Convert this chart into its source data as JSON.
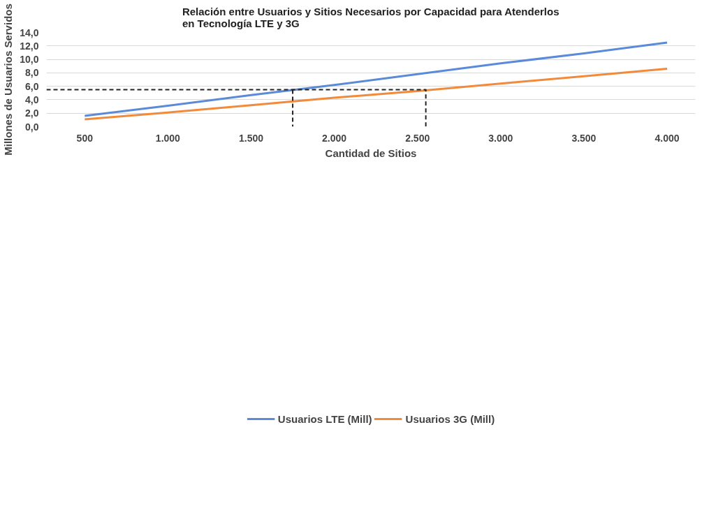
{
  "chart_data": {
    "type": "line",
    "title": "Relación entre Usuarios y Sitios Necesarios por Capacidad para Atenderlos\nen Tecnología LTE y 3G",
    "xlabel": "Cantidad de Sitios",
    "ylabel": "Millones de Usuarios Servidos",
    "x": [
      500,
      1000,
      1500,
      2000,
      2500,
      3000,
      3500,
      4000
    ],
    "xlim": [
      270,
      4170
    ],
    "xticks": [
      500,
      {
        "value": 1000,
        "label": "1.000"
      },
      {
        "value": 1500,
        "label": "1.500"
      },
      {
        "value": 2000,
        "label": "2.000"
      },
      {
        "value": 2500,
        "label": "2.500"
      },
      {
        "value": 3000,
        "label": "3.000"
      },
      {
        "value": 3500,
        "label": "3.500"
      },
      {
        "value": 4000,
        "label": "4.000"
      }
    ],
    "ylim": [
      0,
      14
    ],
    "yticks": [
      {
        "value": 0,
        "label": "0,0"
      },
      {
        "value": 2,
        "label": "2,0"
      },
      {
        "value": 4,
        "label": "4,0"
      },
      {
        "value": 6,
        "label": "6,0"
      },
      {
        "value": 8,
        "label": "8,0"
      },
      {
        "value": 10,
        "label": "10,0"
      },
      {
        "value": 12,
        "label": "12,0"
      },
      {
        "value": 14,
        "label": "14,0"
      }
    ],
    "series": [
      {
        "name": "Usuarios LTE (Mill)",
        "color": "#5b8ad8",
        "values": [
          1.6,
          3.1,
          4.7,
          6.2,
          7.8,
          9.4,
          10.9,
          12.5
        ]
      },
      {
        "name": "Usuarios 3G (Mill)",
        "color": "#f28a3c",
        "values": [
          1.1,
          2.1,
          3.2,
          4.3,
          5.3,
          6.4,
          7.5,
          8.6
        ]
      },
      {
        "color": "#222222",
        "line_style": "dashed",
        "x": [
          270,
          2550,
          2550
        ],
        "values": [
          5.5,
          5.5,
          0
        ]
      },
      {
        "color": "#222222",
        "line_style": "dashed",
        "x": [
          1750,
          1750
        ],
        "values": [
          5.5,
          0
        ]
      }
    ],
    "grid": "y",
    "legend": "bottom",
    "line_style": "solid",
    "marker": "none"
  }
}
